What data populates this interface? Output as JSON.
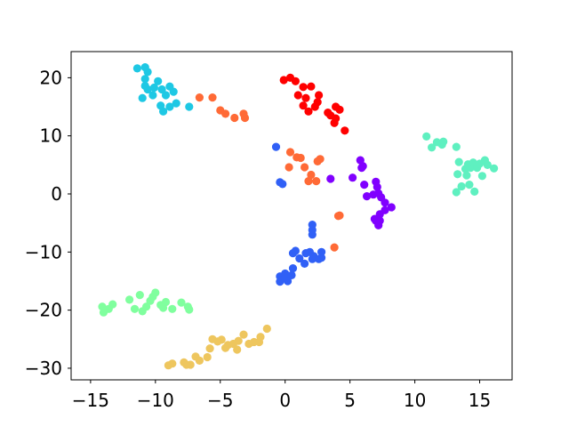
{
  "chart_data": {
    "type": "scatter",
    "title": "",
    "xlabel": "",
    "ylabel": "",
    "xlim": [
      -16.5,
      17.5
    ],
    "ylim": [
      -32,
      24.5
    ],
    "x_ticks": [
      -15,
      -10,
      -5,
      0,
      5,
      10,
      15
    ],
    "x_tick_labels": [
      "−15",
      "−10",
      "−5",
      "0",
      "5",
      "10",
      "15"
    ],
    "y_ticks": [
      -30,
      -20,
      -10,
      0,
      10,
      20
    ],
    "y_tick_labels": [
      "−30",
      "−20",
      "−10",
      "0",
      "10",
      "20"
    ],
    "grid": false,
    "legend": "none",
    "series": [
      {
        "color": "#80ff9e",
        "points": [
          [
            -14.1,
            -19.4
          ],
          [
            -14.0,
            -20.4
          ],
          [
            -13.6,
            -19.8
          ],
          [
            -13.3,
            -19.0
          ],
          [
            -12.0,
            -18.2
          ],
          [
            -11.6,
            -19.8
          ],
          [
            -11.2,
            -17.4
          ],
          [
            -11.0,
            -20.2
          ],
          [
            -10.7,
            -19.4
          ],
          [
            -10.4,
            -18.4
          ],
          [
            -10.2,
            -17.7
          ],
          [
            -10.0,
            -17.0
          ],
          [
            -9.6,
            -19.1
          ],
          [
            -9.4,
            -19.6
          ],
          [
            -9.2,
            -18.6
          ],
          [
            -8.7,
            -19.8
          ],
          [
            -8.0,
            -18.7
          ],
          [
            -7.5,
            -19.4
          ],
          [
            -7.4,
            -19.9
          ]
        ]
      },
      {
        "color": "#eec65e",
        "points": [
          [
            -9.0,
            -29.5
          ],
          [
            -8.7,
            -29.2
          ],
          [
            -7.8,
            -29.0
          ],
          [
            -7.6,
            -29.4
          ],
          [
            -7.3,
            -29.4
          ],
          [
            -6.9,
            -28.0
          ],
          [
            -6.6,
            -28.7
          ],
          [
            -6.0,
            -28.1
          ],
          [
            -5.8,
            -26.6
          ],
          [
            -5.6,
            -25.0
          ],
          [
            -5.2,
            -25.4
          ],
          [
            -4.9,
            -25.1
          ],
          [
            -4.6,
            -26.5
          ],
          [
            -4.4,
            -26.0
          ],
          [
            -4.0,
            -25.8
          ],
          [
            -3.7,
            -26.8
          ],
          [
            -3.6,
            -25.3
          ],
          [
            -3.2,
            -24.2
          ],
          [
            -2.8,
            -25.8
          ],
          [
            -2.4,
            -25.5
          ],
          [
            -2.0,
            -25.5
          ],
          [
            -1.9,
            -24.6
          ],
          [
            -1.4,
            -23.2
          ]
        ]
      },
      {
        "color": "#1ec8e4",
        "points": [
          [
            -11.4,
            21.6
          ],
          [
            -10.8,
            21.8
          ],
          [
            -10.6,
            21.0
          ],
          [
            -10.8,
            19.8
          ],
          [
            -10.6,
            18.0
          ],
          [
            -10.1,
            18.3
          ],
          [
            -9.8,
            19.4
          ],
          [
            -9.5,
            18.0
          ],
          [
            -9.2,
            17.0
          ],
          [
            -8.9,
            18.5
          ],
          [
            -8.9,
            15.0
          ],
          [
            -8.4,
            15.6
          ],
          [
            -8.6,
            17.6
          ],
          [
            -9.4,
            14.2
          ],
          [
            -9.6,
            15.2
          ],
          [
            -10.2,
            17.0
          ],
          [
            -11.0,
            16.5
          ],
          [
            -10.8,
            18.6
          ],
          [
            -7.4,
            15.0
          ]
        ]
      },
      {
        "color": "#ff6a36",
        "points": [
          [
            -6.6,
            16.6
          ],
          [
            -5.6,
            16.6
          ],
          [
            -5.0,
            14.4
          ],
          [
            -4.6,
            13.8
          ],
          [
            -3.9,
            13.1
          ],
          [
            -3.2,
            13.8
          ],
          [
            -3.1,
            13.1
          ],
          [
            0.4,
            7.2
          ],
          [
            0.9,
            6.3
          ],
          [
            1.2,
            6.2
          ],
          [
            0.3,
            4.6
          ],
          [
            1.5,
            4.6
          ],
          [
            2.0,
            3.3
          ],
          [
            1.8,
            2.2
          ],
          [
            2.4,
            2.2
          ],
          [
            2.5,
            5.6
          ],
          [
            2.7,
            6.0
          ],
          [
            4.1,
            -3.8
          ],
          [
            4.2,
            -3.7
          ],
          [
            3.8,
            -9.2
          ]
        ]
      },
      {
        "color": "#ff0000",
        "points": [
          [
            -0.1,
            19.6
          ],
          [
            0.4,
            20.0
          ],
          [
            0.8,
            19.4
          ],
          [
            1.4,
            18.4
          ],
          [
            1.0,
            17.0
          ],
          [
            1.6,
            16.5
          ],
          [
            2.0,
            18.5
          ],
          [
            1.4,
            15.2
          ],
          [
            1.8,
            14.2
          ],
          [
            2.3,
            15.0
          ],
          [
            2.5,
            15.8
          ],
          [
            2.6,
            17.0
          ],
          [
            3.3,
            14.0
          ],
          [
            3.5,
            13.5
          ],
          [
            3.9,
            13.0
          ],
          [
            3.8,
            12.2
          ],
          [
            4.2,
            14.5
          ],
          [
            3.9,
            15.0
          ],
          [
            4.6,
            10.9
          ]
        ]
      },
      {
        "color": "#8000ff",
        "points": [
          [
            3.5,
            2.6
          ],
          [
            5.2,
            2.8
          ],
          [
            5.8,
            5.8
          ],
          [
            5.9,
            4.5
          ],
          [
            6.0,
            4.8
          ],
          [
            6.1,
            1.6
          ],
          [
            6.3,
            -0.4
          ],
          [
            6.8,
            -0.1
          ],
          [
            6.9,
            -4.3
          ],
          [
            7.0,
            2.1
          ],
          [
            7.0,
            -4.6
          ],
          [
            7.1,
            1.2
          ],
          [
            7.2,
            0.1
          ],
          [
            7.2,
            -5.4
          ],
          [
            7.3,
            -3.5
          ],
          [
            7.3,
            -4.6
          ],
          [
            7.4,
            -0.6
          ],
          [
            7.7,
            -2.8
          ],
          [
            7.7,
            -1.5
          ],
          [
            8.2,
            -2.3
          ]
        ]
      },
      {
        "color": "#5ff0c0",
        "points": [
          [
            10.9,
            9.9
          ],
          [
            11.3,
            8.0
          ],
          [
            11.7,
            8.9
          ],
          [
            12.1,
            8.5
          ],
          [
            12.2,
            9.0
          ],
          [
            13.2,
            8.1
          ],
          [
            13.4,
            5.5
          ],
          [
            13.3,
            3.4
          ],
          [
            13.2,
            0.3
          ],
          [
            13.6,
            1.3
          ],
          [
            13.9,
            4.3
          ],
          [
            14.0,
            3.2
          ],
          [
            14.1,
            5.1
          ],
          [
            14.3,
            4.5
          ],
          [
            14.2,
            1.6
          ],
          [
            14.5,
            5.4
          ],
          [
            14.6,
            0.4
          ],
          [
            14.8,
            4.5
          ],
          [
            15.0,
            5.2
          ],
          [
            15.2,
            3.1
          ],
          [
            15.4,
            5.8
          ],
          [
            15.6,
            5.0
          ],
          [
            16.1,
            4.4
          ]
        ]
      },
      {
        "color": "#3060f6",
        "points": [
          [
            -0.7,
            8.1
          ],
          [
            -0.4,
            2.0
          ],
          [
            -0.2,
            1.7
          ],
          [
            -0.4,
            -14.2
          ],
          [
            -0.4,
            -15.1
          ],
          [
            0.0,
            -14.5
          ],
          [
            0.0,
            -13.7
          ],
          [
            0.2,
            -15.0
          ],
          [
            0.5,
            -14.0
          ],
          [
            0.6,
            -12.8
          ],
          [
            0.6,
            -10.2
          ],
          [
            0.8,
            -9.8
          ],
          [
            1.1,
            -11.1
          ],
          [
            1.5,
            -12.0
          ],
          [
            1.6,
            -10.2
          ],
          [
            1.9,
            -10.0
          ],
          [
            2.1,
            -5.3
          ],
          [
            2.1,
            -6.2
          ],
          [
            2.1,
            -7.0
          ],
          [
            2.1,
            -11.2
          ],
          [
            2.2,
            -10.7
          ],
          [
            2.6,
            -11.2
          ],
          [
            2.8,
            -10.0
          ],
          [
            2.8,
            -11.0
          ]
        ]
      }
    ]
  }
}
